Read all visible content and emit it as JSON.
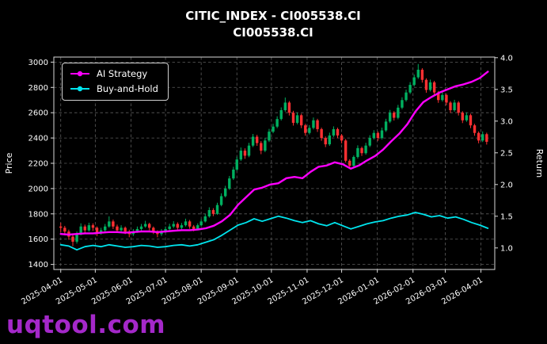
{
  "title": {
    "line1": "CITIC_INDEX - CI005538.CI",
    "line2": "CI005538.CI"
  },
  "watermark": "uqtool.com",
  "colors": {
    "background": "#000000",
    "text": "#ffffff",
    "grid": "#5c5c5c",
    "candle_up": "#00b060",
    "candle_down": "#fe3032",
    "ai_strategy": "#ff00ff",
    "buy_and_hold": "#00e5ee",
    "watermark": "#a428c9",
    "frame": "#d9d9d9"
  },
  "chart_data": {
    "type": "candlestick+line",
    "title": "CITIC_INDEX - CI005538.CI\nCI005538.CI",
    "xlabel": "",
    "ylabel_left": "Price",
    "ylabel_right": "Return",
    "grid": true,
    "legend_position": "upper-left",
    "x_range": [
      -6,
      377
    ],
    "y_left": {
      "ticks": [
        1400,
        1600,
        1800,
        2000,
        2200,
        2400,
        2600,
        2800,
        3000
      ],
      "range": [
        1360,
        3040
      ]
    },
    "y_right": {
      "ticks": [
        1.0,
        1.5,
        2.0,
        2.5,
        3.0,
        3.5,
        4.0
      ],
      "range": [
        0.66,
        4.01
      ]
    },
    "x_ticks": {
      "t": [
        0,
        30,
        61,
        91,
        122,
        153,
        183,
        214,
        244,
        275,
        306,
        334,
        365
      ],
      "labels": [
        "2025-04-01",
        "2025-05-01",
        "2025-06-01",
        "2025-07-01",
        "2025-08-01",
        "2025-09-01",
        "2025-10-01",
        "2025-11-01",
        "2025-12-01",
        "2026-01-01",
        "2026-02-01",
        "2026-03-01",
        "2026-04-01"
      ]
    },
    "candles_format": "[day, open, high, low, close] with day 0 = 2025-04-01",
    "candles": [
      [
        0,
        1700,
        1730,
        1655,
        1690
      ],
      [
        3.5,
        1690,
        1705,
        1630,
        1660
      ],
      [
        7,
        1660,
        1675,
        1595,
        1620
      ],
      [
        10.5,
        1620,
        1635,
        1545,
        1580
      ],
      [
        14,
        1580,
        1660,
        1565,
        1640
      ],
      [
        17.5,
        1640,
        1725,
        1630,
        1700
      ],
      [
        21,
        1700,
        1715,
        1645,
        1670
      ],
      [
        24.5,
        1670,
        1730,
        1660,
        1710
      ],
      [
        28,
        1710,
        1725,
        1665,
        1690
      ],
      [
        31.5,
        1690,
        1700,
        1625,
        1650
      ],
      [
        35,
        1650,
        1690,
        1635,
        1670
      ],
      [
        38.5,
        1670,
        1720,
        1660,
        1700
      ],
      [
        42,
        1700,
        1780,
        1690,
        1740
      ],
      [
        45.5,
        1740,
        1755,
        1680,
        1700
      ],
      [
        49,
        1700,
        1715,
        1650,
        1670
      ],
      [
        52.5,
        1670,
        1710,
        1655,
        1690
      ],
      [
        56,
        1690,
        1700,
        1640,
        1660
      ],
      [
        59.5,
        1660,
        1675,
        1615,
        1640
      ],
      [
        63,
        1640,
        1680,
        1625,
        1660
      ],
      [
        66.5,
        1660,
        1700,
        1650,
        1680
      ],
      [
        70,
        1680,
        1720,
        1665,
        1700
      ],
      [
        73.5,
        1700,
        1745,
        1690,
        1720
      ],
      [
        77,
        1720,
        1730,
        1670,
        1690
      ],
      [
        80.5,
        1690,
        1700,
        1640,
        1660
      ],
      [
        84,
        1660,
        1670,
        1615,
        1640
      ],
      [
        87.5,
        1640,
        1680,
        1625,
        1660
      ],
      [
        91,
        1660,
        1700,
        1648,
        1680
      ],
      [
        94.5,
        1680,
        1722,
        1668,
        1700
      ],
      [
        98,
        1700,
        1742,
        1688,
        1720
      ],
      [
        101.5,
        1720,
        1733,
        1672,
        1690
      ],
      [
        105,
        1690,
        1728,
        1678,
        1710
      ],
      [
        108.5,
        1710,
        1762,
        1700,
        1740
      ],
      [
        112,
        1740,
        1752,
        1682,
        1700
      ],
      [
        115.5,
        1700,
        1712,
        1662,
        1680
      ],
      [
        119,
        1680,
        1725,
        1670,
        1710
      ],
      [
        122,
        1710,
        1758,
        1700,
        1740
      ],
      [
        125.5,
        1740,
        1800,
        1732,
        1780
      ],
      [
        129,
        1780,
        1852,
        1770,
        1830
      ],
      [
        132.5,
        1830,
        1845,
        1782,
        1800
      ],
      [
        136,
        1800,
        1888,
        1792,
        1870
      ],
      [
        139.5,
        1870,
        1962,
        1860,
        1940
      ],
      [
        143,
        1940,
        2022,
        1930,
        2000
      ],
      [
        146.5,
        2000,
        2100,
        1990,
        2080
      ],
      [
        150,
        2080,
        2172,
        2068,
        2150
      ],
      [
        153,
        2150,
        2252,
        2140,
        2230
      ],
      [
        156.5,
        2230,
        2325,
        2218,
        2300
      ],
      [
        160,
        2300,
        2318,
        2235,
        2260
      ],
      [
        163.5,
        2260,
        2362,
        2248,
        2340
      ],
      [
        167,
        2340,
        2432,
        2328,
        2410
      ],
      [
        170.5,
        2410,
        2425,
        2338,
        2360
      ],
      [
        174,
        2360,
        2375,
        2272,
        2300
      ],
      [
        177.5,
        2300,
        2400,
        2288,
        2380
      ],
      [
        181,
        2380,
        2472,
        2368,
        2450
      ],
      [
        184.5,
        2450,
        2512,
        2438,
        2490
      ],
      [
        188,
        2490,
        2572,
        2478,
        2550
      ],
      [
        191.5,
        2550,
        2642,
        2538,
        2620
      ],
      [
        195,
        2620,
        2720,
        2608,
        2680
      ],
      [
        198.5,
        2680,
        2692,
        2578,
        2600
      ],
      [
        202,
        2600,
        2615,
        2498,
        2520
      ],
      [
        205.5,
        2520,
        2602,
        2508,
        2580
      ],
      [
        209,
        2580,
        2592,
        2478,
        2500
      ],
      [
        212.5,
        2500,
        2512,
        2418,
        2440
      ],
      [
        216,
        2440,
        2502,
        2428,
        2480
      ],
      [
        219.5,
        2480,
        2562,
        2468,
        2540
      ],
      [
        223,
        2540,
        2552,
        2448,
        2470
      ],
      [
        226.5,
        2470,
        2482,
        2378,
        2400
      ],
      [
        230,
        2400,
        2412,
        2328,
        2350
      ],
      [
        233.5,
        2350,
        2442,
        2338,
        2420
      ],
      [
        237,
        2420,
        2492,
        2408,
        2470
      ],
      [
        240.5,
        2470,
        2482,
        2398,
        2420
      ],
      [
        244,
        2420,
        2432,
        2358,
        2380
      ],
      [
        247.5,
        2380,
        2392,
        2205,
        2220
      ],
      [
        251,
        2220,
        2232,
        2158,
        2180
      ],
      [
        254.5,
        2180,
        2262,
        2168,
        2250
      ],
      [
        258,
        2250,
        2342,
        2238,
        2320
      ],
      [
        261.5,
        2320,
        2332,
        2258,
        2280
      ],
      [
        265,
        2280,
        2362,
        2268,
        2340
      ],
      [
        268.5,
        2340,
        2422,
        2328,
        2400
      ],
      [
        272,
        2400,
        2462,
        2388,
        2440
      ],
      [
        275.5,
        2440,
        2452,
        2378,
        2400
      ],
      [
        279,
        2400,
        2482,
        2388,
        2460
      ],
      [
        282.5,
        2460,
        2552,
        2448,
        2530
      ],
      [
        286,
        2530,
        2622,
        2518,
        2600
      ],
      [
        289.5,
        2600,
        2612,
        2538,
        2560
      ],
      [
        293,
        2560,
        2662,
        2548,
        2640
      ],
      [
        296.5,
        2640,
        2722,
        2628,
        2700
      ],
      [
        300,
        2700,
        2782,
        2688,
        2760
      ],
      [
        303.5,
        2760,
        2842,
        2748,
        2820
      ],
      [
        307,
        2820,
        2902,
        2808,
        2880
      ],
      [
        310.5,
        2880,
        2985,
        2868,
        2940
      ],
      [
        314,
        2940,
        2952,
        2838,
        2860
      ],
      [
        317.5,
        2860,
        2872,
        2758,
        2780
      ],
      [
        321,
        2780,
        2862,
        2768,
        2840
      ],
      [
        324.5,
        2840,
        2852,
        2738,
        2760
      ],
      [
        328,
        2760,
        2772,
        2678,
        2700
      ],
      [
        331.5,
        2700,
        2762,
        2688,
        2740
      ],
      [
        335,
        2740,
        2752,
        2658,
        2680
      ],
      [
        338.5,
        2680,
        2692,
        2598,
        2620
      ],
      [
        342,
        2620,
        2702,
        2608,
        2680
      ],
      [
        345.5,
        2680,
        2692,
        2578,
        2600
      ],
      [
        349,
        2600,
        2612,
        2518,
        2540
      ],
      [
        352.5,
        2540,
        2602,
        2528,
        2580
      ],
      [
        356,
        2580,
        2592,
        2478,
        2500
      ],
      [
        359.5,
        2500,
        2512,
        2418,
        2440
      ],
      [
        363,
        2440,
        2452,
        2358,
        2380
      ],
      [
        366.5,
        2380,
        2452,
        2368,
        2430
      ],
      [
        370,
        2430,
        2442,
        2348,
        2370
      ]
    ],
    "series": [
      {
        "name": "AI Strategy",
        "axis": "right",
        "color": "#ff00ff",
        "width": 2.4,
        "t": [
          0,
          7,
          14,
          21,
          28,
          35,
          42,
          49,
          56,
          63,
          70,
          77,
          84,
          91,
          98,
          105,
          112,
          119,
          126,
          133,
          140,
          147,
          154,
          161,
          168,
          175,
          182,
          189,
          196,
          203,
          210,
          217,
          224,
          231,
          238,
          245,
          252,
          259,
          266,
          273,
          280,
          287,
          294,
          301,
          308,
          315,
          322,
          329,
          336,
          343,
          350,
          357,
          364,
          371
        ],
        "values": [
          1.22,
          1.21,
          1.22,
          1.23,
          1.23,
          1.24,
          1.25,
          1.25,
          1.24,
          1.25,
          1.26,
          1.26,
          1.25,
          1.26,
          1.27,
          1.28,
          1.28,
          1.29,
          1.31,
          1.35,
          1.42,
          1.52,
          1.68,
          1.8,
          1.92,
          1.95,
          2.0,
          2.02,
          2.1,
          2.12,
          2.1,
          2.2,
          2.28,
          2.3,
          2.35,
          2.32,
          2.25,
          2.3,
          2.38,
          2.45,
          2.55,
          2.68,
          2.8,
          2.95,
          3.15,
          3.3,
          3.38,
          3.45,
          3.5,
          3.55,
          3.58,
          3.62,
          3.68,
          3.78
        ]
      },
      {
        "name": "Buy-and-Hold",
        "axis": "right",
        "color": "#00e5ee",
        "width": 1.8,
        "t": [
          0,
          7,
          14,
          21,
          28,
          35,
          42,
          49,
          56,
          63,
          70,
          77,
          84,
          91,
          98,
          105,
          112,
          119,
          126,
          133,
          140,
          147,
          154,
          161,
          168,
          175,
          182,
          189,
          196,
          203,
          210,
          217,
          224,
          231,
          238,
          245,
          252,
          259,
          266,
          273,
          280,
          287,
          294,
          301,
          308,
          315,
          322,
          329,
          336,
          343,
          350,
          357,
          364,
          371
        ],
        "values": [
          1.05,
          1.03,
          0.97,
          1.02,
          1.04,
          1.02,
          1.05,
          1.03,
          1.01,
          1.02,
          1.04,
          1.03,
          1.01,
          1.02,
          1.04,
          1.05,
          1.03,
          1.05,
          1.09,
          1.13,
          1.2,
          1.28,
          1.36,
          1.4,
          1.46,
          1.42,
          1.46,
          1.5,
          1.47,
          1.43,
          1.4,
          1.43,
          1.38,
          1.35,
          1.4,
          1.35,
          1.3,
          1.34,
          1.38,
          1.41,
          1.43,
          1.47,
          1.5,
          1.52,
          1.56,
          1.53,
          1.49,
          1.51,
          1.47,
          1.49,
          1.45,
          1.4,
          1.36,
          1.31
        ]
      }
    ],
    "legend": {
      "entries": [
        "AI Strategy",
        "Buy-and-Hold"
      ]
    }
  }
}
